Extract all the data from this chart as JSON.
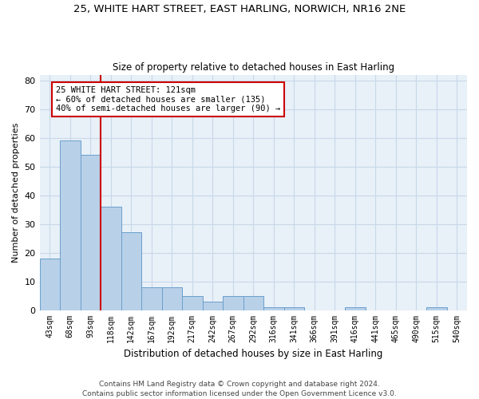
{
  "title_line1": "25, WHITE HART STREET, EAST HARLING, NORWICH, NR16 2NE",
  "title_line2": "Size of property relative to detached houses in East Harling",
  "xlabel": "Distribution of detached houses by size in East Harling",
  "ylabel": "Number of detached properties",
  "categories": [
    "43sqm",
    "68sqm",
    "93sqm",
    "118sqm",
    "142sqm",
    "167sqm",
    "192sqm",
    "217sqm",
    "242sqm",
    "267sqm",
    "292sqm",
    "316sqm",
    "341sqm",
    "366sqm",
    "391sqm",
    "416sqm",
    "441sqm",
    "465sqm",
    "490sqm",
    "515sqm",
    "540sqm"
  ],
  "values": [
    18,
    59,
    54,
    36,
    27,
    8,
    8,
    5,
    3,
    5,
    5,
    1,
    1,
    0,
    0,
    1,
    0,
    0,
    0,
    1,
    0
  ],
  "bar_color": "#b8d0e8",
  "bar_edge_color": "#6aa0cc",
  "vline_color": "#cc0000",
  "annotation_text": "25 WHITE HART STREET: 121sqm\n← 60% of detached houses are smaller (135)\n40% of semi-detached houses are larger (90) →",
  "annotation_box_color": "#cc0000",
  "ylim": [
    0,
    82
  ],
  "yticks": [
    0,
    10,
    20,
    30,
    40,
    50,
    60,
    70,
    80
  ],
  "grid_color": "#c8d8e8",
  "bg_color": "#e8f0f8",
  "footer_line1": "Contains HM Land Registry data © Crown copyright and database right 2024.",
  "footer_line2": "Contains public sector information licensed under the Open Government Licence v3.0."
}
